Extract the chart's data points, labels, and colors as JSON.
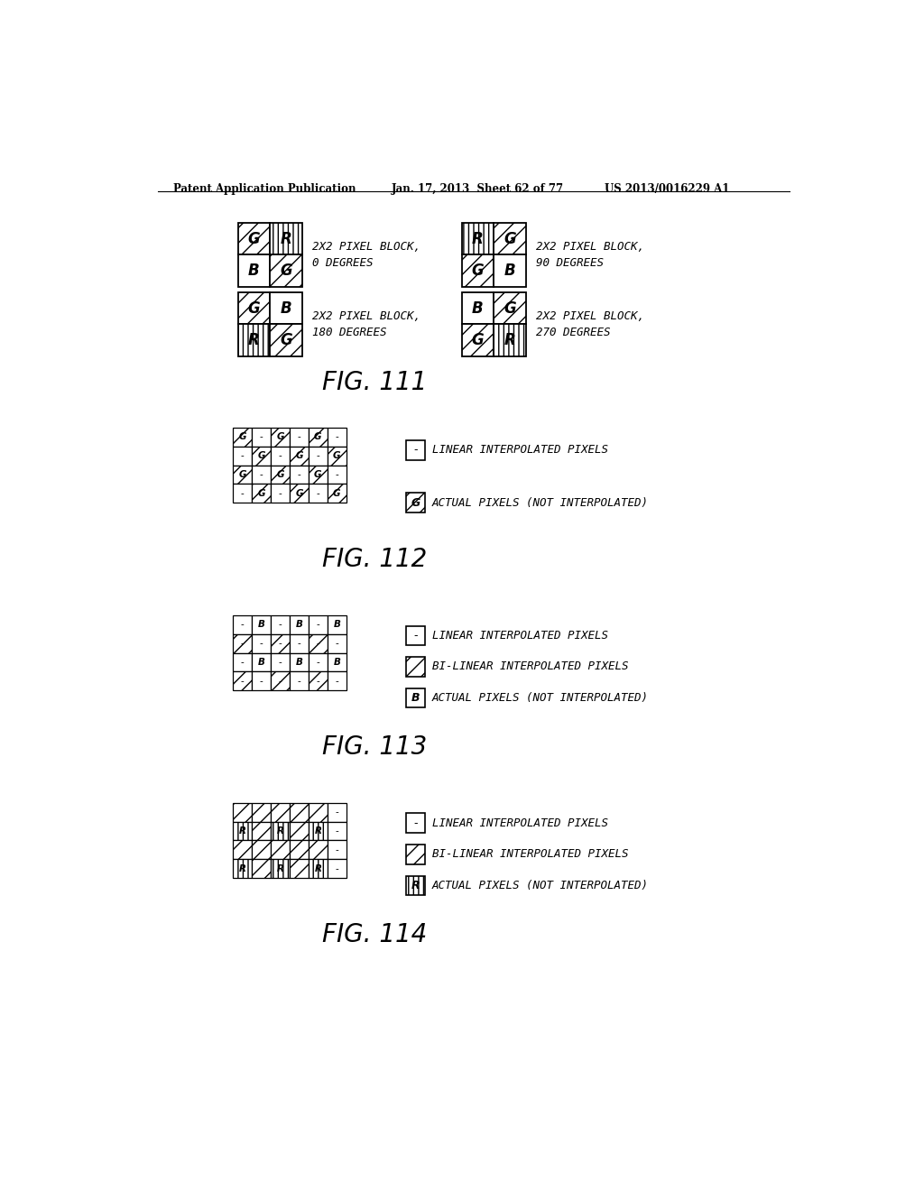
{
  "bg_color": "#ffffff",
  "header_left": "Patent Application Publication",
  "header_mid": "Jan. 17, 2013  Sheet 62 of 77",
  "header_right": "US 2013/0016229 A1",
  "fig111_title": "FIG. 111",
  "fig112_title": "FIG. 112",
  "fig113_title": "FIG. 113",
  "fig114_title": "FIG. 114",
  "legend_linear": "LINEAR INTERPOLATED PIXELS",
  "legend_bilinear": "BI-LINEAR INTERPOLATED PIXELS",
  "legend_actual": "ACTUAL PIXELS (NOT INTERPOLATED)",
  "fig111_labels": [
    [
      "2X2 PIXEL BLOCK,",
      "0 DEGREES"
    ],
    [
      "2X2 PIXEL BLOCK,",
      "90 DEGREES"
    ],
    [
      "2X2 PIXEL BLOCK,",
      "180 DEGREES"
    ],
    [
      "2X2 PIXEL BLOCK,",
      "270 DEGREES"
    ]
  ]
}
